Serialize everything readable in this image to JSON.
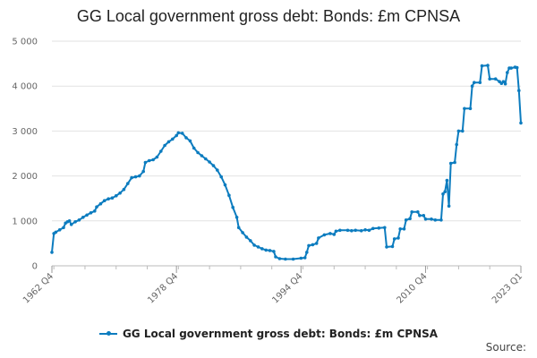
{
  "chart_data": {
    "type": "line",
    "title": "GG Local government gross debt: Bonds: £m CPNSA",
    "x_tick_labels": [
      "1962 Q4",
      "1978 Q4",
      "1994 Q4",
      "2010 Q4",
      "2023 Q1"
    ],
    "x_range": [
      "1962 Q4",
      "2023 Q1"
    ],
    "ylim": [
      0,
      5000
    ],
    "y_ticks": [
      0,
      1000,
      2000,
      3000,
      4000,
      5000
    ],
    "y_tick_labels": [
      "0",
      "1 000",
      "2 000",
      "3 000",
      "4 000",
      "5 000"
    ],
    "grid": "horizontal",
    "legend_position": "bottom",
    "color": "#0c7cbf",
    "series": [
      {
        "name": "GG Local government gross debt: Bonds: £m CPNSA",
        "points": [
          [
            "1962 Q4",
            300
          ],
          [
            "1963 Q1",
            720
          ],
          [
            "1963 Q2",
            750
          ],
          [
            "1963 Q4",
            800
          ],
          [
            "1964 Q2",
            850
          ],
          [
            "1964 Q3",
            950
          ],
          [
            "1964 Q4",
            980
          ],
          [
            "1965 Q1",
            1000
          ],
          [
            "1965 Q2",
            920
          ],
          [
            "1965 Q4",
            980
          ],
          [
            "1966 Q2",
            1020
          ],
          [
            "1966 Q4",
            1080
          ],
          [
            "1967 Q2",
            1130
          ],
          [
            "1967 Q4",
            1180
          ],
          [
            "1968 Q2",
            1220
          ],
          [
            "1968 Q3",
            1310
          ],
          [
            "1969 Q1",
            1380
          ],
          [
            "1969 Q3",
            1450
          ],
          [
            "1970 Q1",
            1490
          ],
          [
            "1970 Q3",
            1510
          ],
          [
            "1971 Q1",
            1560
          ],
          [
            "1971 Q3",
            1620
          ],
          [
            "1972 Q1",
            1700
          ],
          [
            "1972 Q3",
            1830
          ],
          [
            "1973 Q1",
            1960
          ],
          [
            "1973 Q3",
            1980
          ],
          [
            "1974 Q1",
            2000
          ],
          [
            "1974 Q3",
            2100
          ],
          [
            "1974 Q4",
            2300
          ],
          [
            "1975 Q2",
            2340
          ],
          [
            "1975 Q4",
            2360
          ],
          [
            "1976 Q2",
            2420
          ],
          [
            "1976 Q4",
            2550
          ],
          [
            "1977 Q2",
            2680
          ],
          [
            "1977 Q4",
            2760
          ],
          [
            "1978 Q2",
            2820
          ],
          [
            "1978 Q4",
            2900
          ],
          [
            "1979 Q1",
            2960
          ],
          [
            "1979 Q3",
            2950
          ],
          [
            "1980 Q1",
            2850
          ],
          [
            "1980 Q3",
            2780
          ],
          [
            "1981 Q1",
            2620
          ],
          [
            "1981 Q3",
            2520
          ],
          [
            "1982 Q1",
            2450
          ],
          [
            "1982 Q3",
            2380
          ],
          [
            "1983 Q1",
            2310
          ],
          [
            "1983 Q3",
            2230
          ],
          [
            "1984 Q1",
            2130
          ],
          [
            "1984 Q3",
            1980
          ],
          [
            "1985 Q1",
            1800
          ],
          [
            "1985 Q3",
            1570
          ],
          [
            "1986 Q1",
            1300
          ],
          [
            "1986 Q3",
            1080
          ],
          [
            "1986 Q4",
            850
          ],
          [
            "1987 Q2",
            740
          ],
          [
            "1987 Q4",
            640
          ],
          [
            "1988 Q2",
            560
          ],
          [
            "1988 Q4",
            460
          ],
          [
            "1989 Q2",
            420
          ],
          [
            "1989 Q4",
            380
          ],
          [
            "1990 Q2",
            350
          ],
          [
            "1990 Q4",
            340
          ],
          [
            "1991 Q2",
            320
          ],
          [
            "1991 Q3",
            200
          ],
          [
            "1992 Q1",
            160
          ],
          [
            "1992 Q4",
            150
          ],
          [
            "1993 Q4",
            150
          ],
          [
            "1994 Q4",
            170
          ],
          [
            "1995 Q2",
            180
          ],
          [
            "1995 Q3",
            300
          ],
          [
            "1995 Q4",
            450
          ],
          [
            "1996 Q2",
            470
          ],
          [
            "1996 Q4",
            500
          ],
          [
            "1997 Q1",
            620
          ],
          [
            "1997 Q4",
            690
          ],
          [
            "1998 Q3",
            720
          ],
          [
            "1999 Q1",
            700
          ],
          [
            "1999 Q2",
            770
          ],
          [
            "1999 Q4",
            790
          ],
          [
            "2000 Q4",
            790
          ],
          [
            "2001 Q2",
            780
          ],
          [
            "2001 Q4",
            790
          ],
          [
            "2002 Q3",
            780
          ],
          [
            "2003 Q1",
            800
          ],
          [
            "2003 Q3",
            790
          ],
          [
            "2004 Q1",
            830
          ],
          [
            "2004 Q4",
            840
          ],
          [
            "2005 Q3",
            850
          ],
          [
            "2005 Q4",
            420
          ],
          [
            "2006 Q3",
            430
          ],
          [
            "2006 Q4",
            600
          ],
          [
            "2007 Q2",
            620
          ],
          [
            "2007 Q3",
            820
          ],
          [
            "2008 Q1",
            820
          ],
          [
            "2008 Q2",
            1020
          ],
          [
            "2008 Q4",
            1050
          ],
          [
            "2009 Q1",
            1200
          ],
          [
            "2009 Q4",
            1200
          ],
          [
            "2010 Q1",
            1120
          ],
          [
            "2010 Q3",
            1120
          ],
          [
            "2010 Q4",
            1040
          ],
          [
            "2011 Q3",
            1040
          ],
          [
            "2012 Q1",
            1020
          ],
          [
            "2012 Q4",
            1020
          ],
          [
            "2013 Q1",
            1600
          ],
          [
            "2013 Q2",
            1650
          ],
          [
            "2013 Q3",
            1900
          ],
          [
            "2013 Q4",
            1330
          ],
          [
            "2014 Q1",
            2280
          ],
          [
            "2014 Q3",
            2300
          ],
          [
            "2014 Q4",
            2700
          ],
          [
            "2015 Q1",
            3000
          ],
          [
            "2015 Q3",
            3000
          ],
          [
            "2015 Q4",
            3500
          ],
          [
            "2016 Q3",
            3500
          ],
          [
            "2016 Q4",
            4000
          ],
          [
            "2017 Q1",
            4080
          ],
          [
            "2017 Q4",
            4080
          ],
          [
            "2018 Q1",
            4450
          ],
          [
            "2018 Q4",
            4460
          ],
          [
            "2019 Q1",
            4160
          ],
          [
            "2019 Q4",
            4160
          ],
          [
            "2020 Q2",
            4100
          ],
          [
            "2020 Q3",
            4060
          ],
          [
            "2020 Q4",
            4100
          ],
          [
            "2021 Q1",
            4050
          ],
          [
            "2021 Q2",
            4300
          ],
          [
            "2021 Q3",
            4400
          ],
          [
            "2021 Q4",
            4400
          ],
          [
            "2022 Q2",
            4420
          ],
          [
            "2022 Q3",
            4410
          ],
          [
            "2022 Q4",
            3900
          ],
          [
            "2023 Q1",
            3180
          ]
        ]
      }
    ]
  },
  "footer": {
    "source_label": "Source:"
  }
}
